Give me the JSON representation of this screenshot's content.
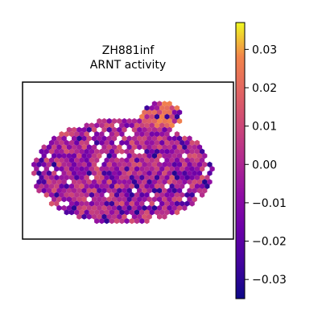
{
  "chart_data": {
    "type": "heatmap",
    "subtype": "spatial hexbin",
    "title": "ZH881inf",
    "subtitle": "ARNT activity",
    "colormap": "plasma",
    "colorbar": {
      "vmin": -0.035,
      "vmax": 0.037,
      "ticks": [
        0.03,
        0.02,
        0.01,
        0.0,
        -0.01,
        -0.02,
        -0.03
      ],
      "tick_labels": [
        "0.03",
        "0.02",
        "0.01",
        "0.00",
        "−0.01",
        "−0.02",
        "−0.03"
      ]
    },
    "frame": true,
    "grid": false
  }
}
